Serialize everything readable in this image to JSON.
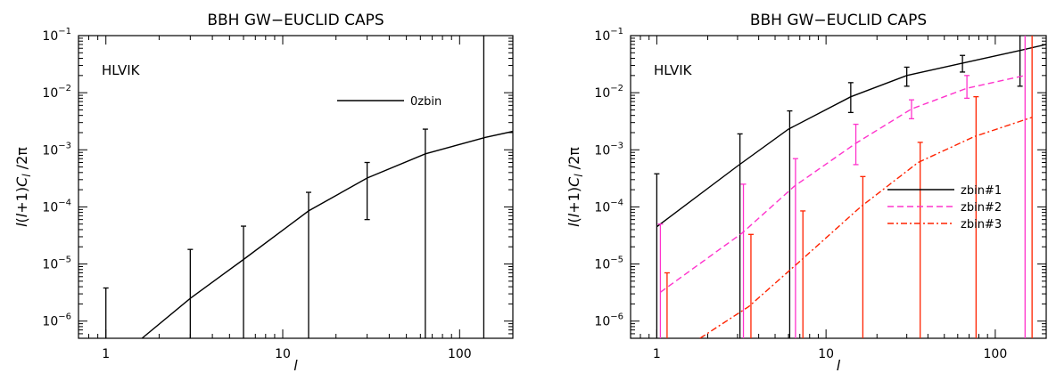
{
  "chart_data": [
    {
      "type": "line",
      "title": "BBH GW−EUCLID CAPS",
      "label": "HLVIK",
      "xlabel": "l",
      "ylabel": "l(l+1)C_l /2π",
      "ylabel_parts": [
        "l",
        "(",
        "l",
        "+1)",
        "C",
        "l",
        " /2π"
      ],
      "x_scale": "log",
      "y_scale": "log",
      "xlim": [
        0.7,
        200
      ],
      "ylim": [
        5e-07,
        0.1
      ],
      "x_ticks": [
        {
          "value": 1,
          "label": "1"
        },
        {
          "value": 10,
          "label": "10"
        },
        {
          "value": 100,
          "label": "100"
        }
      ],
      "y_ticks": [
        {
          "value": 1e-06,
          "base": "10",
          "exp": "−6"
        },
        {
          "value": 1e-05,
          "base": "10",
          "exp": "−5"
        },
        {
          "value": 0.0001,
          "base": "10",
          "exp": "−4"
        },
        {
          "value": 0.001,
          "base": "10",
          "exp": "−3"
        },
        {
          "value": 0.01,
          "base": "10",
          "exp": "−2"
        },
        {
          "value": 0.1,
          "base": "10",
          "exp": "−1"
        }
      ],
      "legend_position": "top-right",
      "series": [
        {
          "name": "0zbin",
          "color": "#000000",
          "dash": "solid",
          "x": [
            1.6,
            3,
            6,
            14,
            30,
            64,
            140,
            200
          ],
          "y": [
            5e-07,
            2.5e-06,
            1.2e-05,
            8.5e-05,
            0.00032,
            0.00085,
            0.00165,
            0.0021
          ],
          "errorbars": [
            {
              "x": 1,
              "lo": 5e-07,
              "hi": 3.8e-06
            },
            {
              "x": 3,
              "lo": 5e-07,
              "hi": 1.8e-05
            },
            {
              "x": 6,
              "lo": 5e-07,
              "hi": 4.6e-05
            },
            {
              "x": 14,
              "lo": 5e-07,
              "hi": 0.00018
            },
            {
              "x": 30,
              "lo": 6e-05,
              "hi": 0.0006
            },
            {
              "x": 64,
              "lo": 5e-07,
              "hi": 0.0023
            },
            {
              "x": 137,
              "lo": 5e-07,
              "hi": 0.1
            }
          ]
        }
      ]
    },
    {
      "type": "line",
      "title": "BBH GW−EUCLID CAPS",
      "label": "HLVIK",
      "xlabel": "l",
      "ylabel": "l(l+1)C_l /2π",
      "ylabel_parts": [
        "l",
        "(",
        "l",
        "+1)",
        "C",
        "l",
        " /2π"
      ],
      "x_scale": "log",
      "y_scale": "log",
      "xlim": [
        0.7,
        200
      ],
      "ylim": [
        5e-07,
        0.1
      ],
      "x_ticks": [
        {
          "value": 1,
          "label": "1"
        },
        {
          "value": 10,
          "label": "10"
        },
        {
          "value": 100,
          "label": "100"
        }
      ],
      "y_ticks": [
        {
          "value": 1e-06,
          "base": "10",
          "exp": "−6"
        },
        {
          "value": 1e-05,
          "base": "10",
          "exp": "−5"
        },
        {
          "value": 0.0001,
          "base": "10",
          "exp": "−4"
        },
        {
          "value": 0.001,
          "base": "10",
          "exp": "−3"
        },
        {
          "value": 0.01,
          "base": "10",
          "exp": "−2"
        },
        {
          "value": 0.1,
          "base": "10",
          "exp": "−1"
        }
      ],
      "legend_position": "center-right",
      "series": [
        {
          "name": "zbin#1",
          "color": "#000000",
          "dash": "solid",
          "x": [
            1,
            3,
            6,
            14,
            30,
            64,
            140,
            200
          ],
          "y": [
            4.5e-05,
            0.00052,
            0.0023,
            0.0085,
            0.02,
            0.033,
            0.055,
            0.07
          ],
          "errorbars": [
            {
              "x": 1,
              "lo": 5e-07,
              "hi": 0.00038
            },
            {
              "x": 3.1,
              "lo": 5e-07,
              "hi": 0.0019
            },
            {
              "x": 6.1,
              "lo": 5e-07,
              "hi": 0.0048
            },
            {
              "x": 14,
              "lo": 0.0045,
              "hi": 0.015
            },
            {
              "x": 30,
              "lo": 0.013,
              "hi": 0.028
            },
            {
              "x": 64,
              "lo": 0.023,
              "hi": 0.045
            },
            {
              "x": 140,
              "lo": 0.013,
              "hi": 0.1
            }
          ]
        },
        {
          "name": "zbin#2",
          "color": "#ff33cc",
          "dash": "dashed",
          "x": [
            1.05,
            3.2,
            6.5,
            15,
            32,
            68,
            150
          ],
          "y": [
            3.2e-06,
            3.5e-05,
            0.00023,
            0.0013,
            0.0052,
            0.012,
            0.02
          ],
          "errorbars": [
            {
              "x": 1.05,
              "lo": 5e-07,
              "hi": 5e-05
            },
            {
              "x": 3.25,
              "lo": 5e-07,
              "hi": 0.00025
            },
            {
              "x": 6.6,
              "lo": 5e-07,
              "hi": 0.0007
            },
            {
              "x": 15,
              "lo": 0.00055,
              "hi": 0.0028
            },
            {
              "x": 32,
              "lo": 0.0035,
              "hi": 0.0075
            },
            {
              "x": 68,
              "lo": 0.008,
              "hi": 0.02
            },
            {
              "x": 150,
              "lo": 5e-07,
              "hi": 0.1
            }
          ]
        },
        {
          "name": "zbin#3",
          "color": "#ff2200",
          "dash": "dashdot",
          "x": [
            1.8,
            3.5,
            7.2,
            16,
            35,
            75,
            165
          ],
          "y": [
            5e-07,
            1.8e-06,
            1.2e-05,
            0.0001,
            0.0006,
            0.0017,
            0.0037
          ],
          "errorbars": [
            {
              "x": 1.15,
              "lo": 5e-07,
              "hi": 7e-06
            },
            {
              "x": 3.6,
              "lo": 5e-07,
              "hi": 3.3e-05
            },
            {
              "x": 7.3,
              "lo": 5e-07,
              "hi": 8.5e-05
            },
            {
              "x": 16.5,
              "lo": 5e-07,
              "hi": 0.00034
            },
            {
              "x": 36,
              "lo": 5e-07,
              "hi": 0.00135
            },
            {
              "x": 77,
              "lo": 5e-07,
              "hi": 0.0085
            },
            {
              "x": 165,
              "lo": 5e-07,
              "hi": 0.1
            }
          ]
        }
      ]
    }
  ]
}
